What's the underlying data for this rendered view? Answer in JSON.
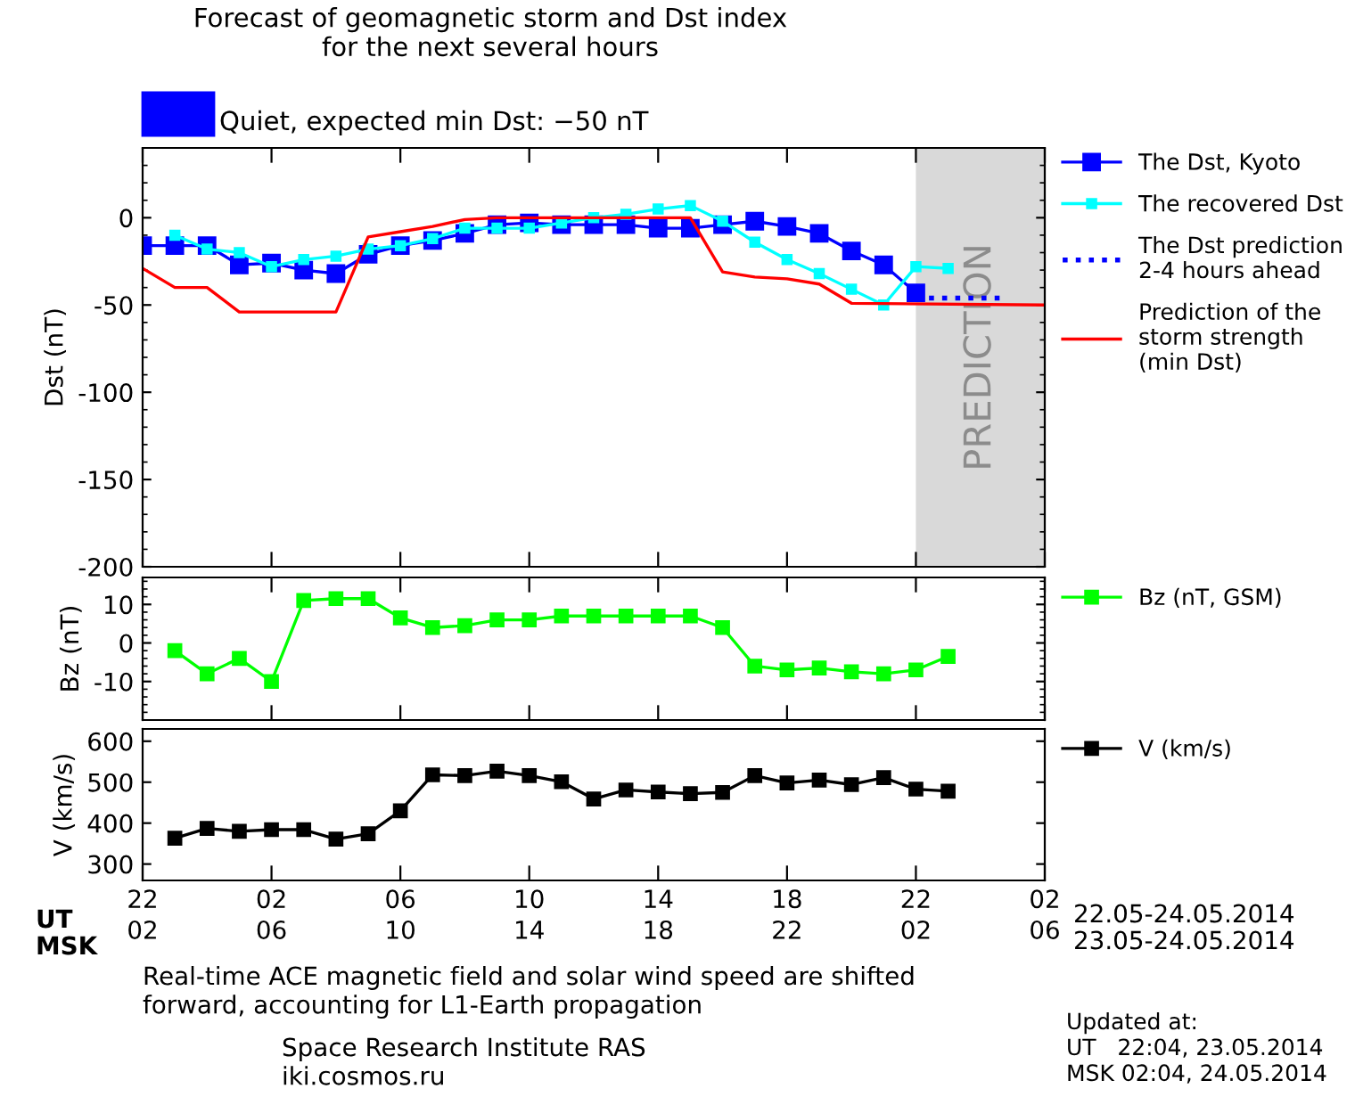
{
  "chart_data": [
    {
      "type": "line",
      "title": "Forecast of geomagnetic storm and Dst index\nfor the next several hours",
      "subtitle": "Quiet, expected min Dst: −50 nT",
      "ylabel": "Dst (nT)",
      "xlim": [
        "2014-05-22T22:00",
        "2014-05-24T02:00"
      ],
      "xticks": [
        "2014-05-22T22:00",
        "2014-05-23T02:00",
        "2014-05-23T06:00",
        "2014-05-23T10:00",
        "2014-05-23T14:00",
        "2014-05-23T18:00",
        "2014-05-23T22:00",
        "2014-05-24T02:00"
      ],
      "ylim": [
        -200,
        40
      ],
      "yticks": [
        -200,
        -150,
        -100,
        -50,
        0
      ],
      "tick_labels": "y",
      "legend": "right",
      "marker": "square",
      "bands": [
        {
          "axis": "x",
          "from": "2014-05-23T22:00",
          "to": "2014-05-24T02:00",
          "label": "PREDICTION",
          "color": "#d9d9d9"
        }
      ],
      "series": [
        {
          "name": "The Dst, Kyoto",
          "color": "#0000ff",
          "marker": "square",
          "line_style": "solid",
          "x": [
            "2014-05-22T22:00",
            "2014-05-22T23:00",
            "2014-05-23T00:00",
            "2014-05-23T01:00",
            "2014-05-23T02:00",
            "2014-05-23T03:00",
            "2014-05-23T04:00",
            "2014-05-23T05:00",
            "2014-05-23T06:00",
            "2014-05-23T07:00",
            "2014-05-23T08:00",
            "2014-05-23T09:00",
            "2014-05-23T10:00",
            "2014-05-23T11:00",
            "2014-05-23T12:00",
            "2014-05-23T13:00",
            "2014-05-23T14:00",
            "2014-05-23T15:00",
            "2014-05-23T16:00",
            "2014-05-23T17:00",
            "2014-05-23T18:00",
            "2014-05-23T19:00",
            "2014-05-23T20:00",
            "2014-05-23T21:00",
            "2014-05-23T22:00"
          ],
          "values": [
            -16,
            -16,
            -16,
            -27,
            -26,
            -30,
            -32,
            -21,
            -16,
            -13,
            -9,
            -4,
            -3,
            -4,
            -4,
            -4,
            -6,
            -6,
            -4,
            -2,
            -5,
            -9,
            -19,
            -27,
            -43
          ]
        },
        {
          "name": "The recovered Dst",
          "color": "#00ffff",
          "marker": "square",
          "line_style": "solid",
          "x": [
            "2014-05-22T23:00",
            "2014-05-23T00:00",
            "2014-05-23T01:00",
            "2014-05-23T02:00",
            "2014-05-23T03:00",
            "2014-05-23T04:00",
            "2014-05-23T05:00",
            "2014-05-23T06:00",
            "2014-05-23T07:00",
            "2014-05-23T08:00",
            "2014-05-23T09:00",
            "2014-05-23T10:00",
            "2014-05-23T11:00",
            "2014-05-23T12:00",
            "2014-05-23T13:00",
            "2014-05-23T14:00",
            "2014-05-23T15:00",
            "2014-05-23T16:00",
            "2014-05-23T17:00",
            "2014-05-23T18:00",
            "2014-05-23T19:00",
            "2014-05-23T20:00",
            "2014-05-23T21:00",
            "2014-05-23T22:00",
            "2014-05-23T23:00"
          ],
          "values": [
            -10,
            -18,
            -20,
            -28,
            -24,
            -22,
            -18,
            -16,
            -12,
            -6,
            -6,
            -6,
            -3,
            0,
            2,
            5,
            7,
            -2,
            -14,
            -24,
            -32,
            -41,
            -50,
            -28,
            -29
          ]
        },
        {
          "name": "The Dst prediction\n2-4 hours ahead",
          "color": "#0000ff",
          "marker": "none",
          "line_style": "dotted",
          "x": [
            "2014-05-23T22:00",
            "2014-05-24T00:45"
          ],
          "values": [
            -46,
            -46
          ]
        },
        {
          "name": "Prediction of the\nstorm strength\n(min Dst)",
          "color": "#ff0000",
          "marker": "none",
          "line_style": "solid",
          "x": [
            "2014-05-22T22:00",
            "2014-05-22T23:00",
            "2014-05-23T00:00",
            "2014-05-23T01:00",
            "2014-05-23T04:00",
            "2014-05-23T05:00",
            "2014-05-23T06:00",
            "2014-05-23T07:00",
            "2014-05-23T08:00",
            "2014-05-23T09:00",
            "2014-05-23T15:00",
            "2014-05-23T16:00",
            "2014-05-23T17:00",
            "2014-05-23T18:00",
            "2014-05-23T19:00",
            "2014-05-23T20:00",
            "2014-05-24T02:00"
          ],
          "values": [
            -29,
            -40,
            -40,
            -54,
            -54,
            -11,
            -8,
            -5,
            -1,
            0,
            0,
            -31,
            -34,
            -35,
            -38,
            -49,
            -50
          ]
        }
      ]
    },
    {
      "type": "line",
      "ylabel": "Bz (nT)",
      "xlim": [
        "2014-05-22T22:00",
        "2014-05-24T02:00"
      ],
      "xticks": [
        "2014-05-22T22:00",
        "2014-05-23T02:00",
        "2014-05-23T06:00",
        "2014-05-23T10:00",
        "2014-05-23T14:00",
        "2014-05-23T18:00",
        "2014-05-23T22:00",
        "2014-05-24T02:00"
      ],
      "ylim": [
        -20,
        17
      ],
      "yticks": [
        -10,
        0,
        10
      ],
      "tick_labels": "y",
      "legend": "right",
      "marker": "square",
      "x": [
        "2014-05-22T23:00",
        "2014-05-23T00:00",
        "2014-05-23T01:00",
        "2014-05-23T02:00",
        "2014-05-23T03:00",
        "2014-05-23T04:00",
        "2014-05-23T05:00",
        "2014-05-23T06:00",
        "2014-05-23T07:00",
        "2014-05-23T08:00",
        "2014-05-23T09:00",
        "2014-05-23T10:00",
        "2014-05-23T11:00",
        "2014-05-23T12:00",
        "2014-05-23T13:00",
        "2014-05-23T14:00",
        "2014-05-23T15:00",
        "2014-05-23T16:00",
        "2014-05-23T17:00",
        "2014-05-23T18:00",
        "2014-05-23T19:00",
        "2014-05-23T20:00",
        "2014-05-23T21:00",
        "2014-05-23T22:00",
        "2014-05-23T23:00"
      ],
      "series": [
        {
          "name": "Bz (nT, GSM)",
          "color": "#00ff00",
          "values": [
            -2,
            -8,
            -4,
            -10,
            11,
            11.5,
            11.5,
            6.5,
            4,
            4.5,
            6,
            6,
            7,
            7,
            7,
            7,
            7,
            4,
            -6,
            -7,
            -6.5,
            -7.5,
            -8,
            -7,
            -3.5
          ]
        }
      ]
    },
    {
      "type": "line",
      "ylabel": "V (km/s)",
      "xlim": [
        "2014-05-22T22:00",
        "2014-05-24T02:00"
      ],
      "xticks": [
        {
          "value": "2014-05-22T22:00",
          "label": "22"
        },
        {
          "value": "2014-05-23T02:00",
          "label": "02"
        },
        {
          "value": "2014-05-23T06:00",
          "label": "06"
        },
        {
          "value": "2014-05-23T10:00",
          "label": "10"
        },
        {
          "value": "2014-05-23T14:00",
          "label": "14"
        },
        {
          "value": "2014-05-23T18:00",
          "label": "18"
        },
        {
          "value": "2014-05-23T22:00",
          "label": "22"
        },
        {
          "value": "2014-05-24T02:00",
          "label": "02"
        }
      ],
      "x2lim": [
        "2014-05-23T02:00",
        "2014-05-24T06:00"
      ],
      "x2ticks": [
        {
          "value": "2014-05-23T02:00",
          "label": "02"
        },
        {
          "value": "2014-05-23T06:00",
          "label": "06"
        },
        {
          "value": "2014-05-23T10:00",
          "label": "10"
        },
        {
          "value": "2014-05-23T14:00",
          "label": "14"
        },
        {
          "value": "2014-05-23T18:00",
          "label": "18"
        },
        {
          "value": "2014-05-23T22:00",
          "label": "22"
        },
        {
          "value": "2014-05-24T02:00",
          "label": "02"
        },
        {
          "value": "2014-05-24T06:00",
          "label": "06"
        }
      ],
      "ylim": [
        260,
        630
      ],
      "yticks": [
        300,
        400,
        500,
        600
      ],
      "legend": "right",
      "marker": "square",
      "annotations": [
        "UT",
        "MSK",
        "22.05-24.05.2014",
        "23.05-24.05.2014",
        "Real-time ACE magnetic field and solar wind speed are shifted\nforward, accounting for L1-Earth propagation",
        "Space Research Institute RAS\niki.cosmos.ru",
        "Updated at:\nUT   22:04, 23.05.2014\nMSK 02:04, 24.05.2014"
      ],
      "x": [
        "2014-05-22T23:00",
        "2014-05-23T00:00",
        "2014-05-23T01:00",
        "2014-05-23T02:00",
        "2014-05-23T03:00",
        "2014-05-23T04:00",
        "2014-05-23T05:00",
        "2014-05-23T06:00",
        "2014-05-23T07:00",
        "2014-05-23T08:00",
        "2014-05-23T09:00",
        "2014-05-23T10:00",
        "2014-05-23T11:00",
        "2014-05-23T12:00",
        "2014-05-23T13:00",
        "2014-05-23T14:00",
        "2014-05-23T15:00",
        "2014-05-23T16:00",
        "2014-05-23T17:00",
        "2014-05-23T18:00",
        "2014-05-23T19:00",
        "2014-05-23T20:00",
        "2014-05-23T21:00",
        "2014-05-23T22:00",
        "2014-05-23T23:00"
      ],
      "series": [
        {
          "name": "V (km/s)",
          "color": "#000000",
          "values": [
            363,
            387,
            380,
            384,
            384,
            361,
            374,
            430,
            518,
            516,
            527,
            516,
            501,
            459,
            481,
            476,
            472,
            475,
            516,
            498,
            505,
            494,
            511,
            483,
            478
          ]
        }
      ]
    }
  ]
}
